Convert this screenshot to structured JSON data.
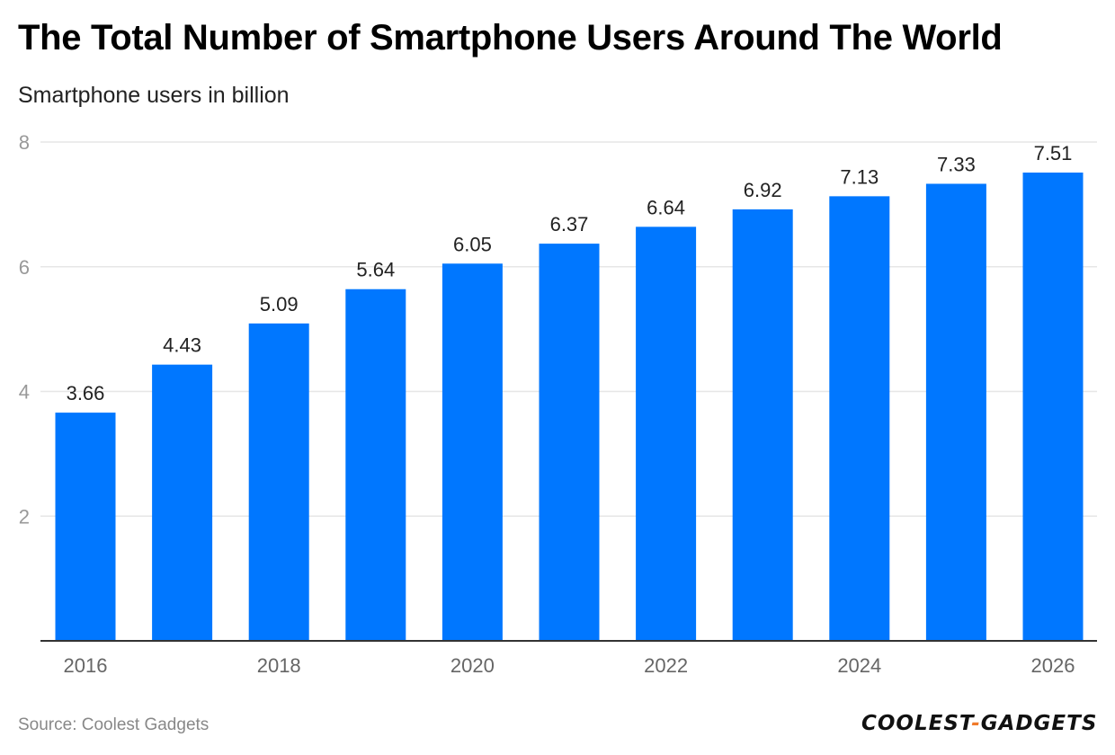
{
  "title": "The Total Number of Smartphone Users Around The World",
  "subtitle": "Smartphone users in billion",
  "source": "Source: Coolest Gadgets",
  "logo": {
    "left": "COOLEST",
    "dash": "-",
    "right": "GADGETS"
  },
  "colors": {
    "bar": "#0077ff",
    "grid": "#e6e6e6",
    "axis": "#333333",
    "logo_dash": "#f07a2a"
  },
  "chart_data": {
    "type": "bar",
    "categories": [
      "2016",
      "2017",
      "2018",
      "2019",
      "2020",
      "2021",
      "2022",
      "2023",
      "2024",
      "2025",
      "2026"
    ],
    "values": [
      3.66,
      4.43,
      5.09,
      5.64,
      6.05,
      6.37,
      6.64,
      6.92,
      7.13,
      7.33,
      7.51
    ],
    "x_tick_labels": [
      "2016",
      "2018",
      "2020",
      "2022",
      "2024",
      "2026"
    ],
    "y_ticks": [
      2,
      4,
      6,
      8
    ],
    "ylim": [
      0,
      8
    ],
    "ylabel": "Smartphone users in billion",
    "grid": true,
    "data_labels": true
  }
}
